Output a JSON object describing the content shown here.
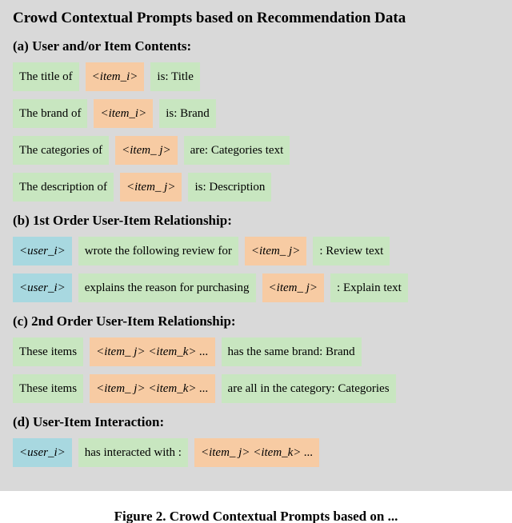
{
  "colors": {
    "panel_bg": "#d9d9d9",
    "green": "#c8e6c0",
    "orange": "#f7cba3",
    "blue": "#a8d8e0"
  },
  "title": "Crowd Contextual Prompts based on Recommendation Data",
  "sections": {
    "a": {
      "label": "(a) User and/or Item Contents:",
      "rows": [
        {
          "p1": "The title of",
          "tok": "<item_i>",
          "p2": "is: Title"
        },
        {
          "p1": "The brand of",
          "tok": "<item_i>",
          "p2": "is: Brand"
        },
        {
          "p1": "The categories of",
          "tok": "<item_ j>",
          "p2": "are: Categories text"
        },
        {
          "p1": "The description of",
          "tok": "<item_ j>",
          "p2": "is: Description"
        }
      ]
    },
    "b": {
      "label": "(b) 1st Order User-Item Relationship:",
      "rows": [
        {
          "u": "<user_i>",
          "mid": "wrote the following review for",
          "tok": "<item_ j>",
          "tail": ":   Review text"
        },
        {
          "u": "<user_i>",
          "mid": "explains the reason for purchasing",
          "tok": "<item_ j>",
          "tail": ":   Explain text"
        }
      ]
    },
    "c": {
      "label": "(c) 2nd Order User-Item Relationship:",
      "rows": [
        {
          "p1": "These items",
          "tok": "<item_ j> <item_k> ...",
          "p2": "has the same brand: Brand"
        },
        {
          "p1": "These items",
          "tok": "<item_ j> <item_k> ...",
          "p2": "are all in the category: Categories"
        }
      ]
    },
    "d": {
      "label": "(d) User-Item Interaction:",
      "rows": [
        {
          "u": "<user_i>",
          "mid": "has interacted with  :",
          "tok": "<item_ j> <item_k> ..."
        }
      ]
    }
  },
  "caption": "Figure 2. Crowd Contextual Prompts based on ..."
}
